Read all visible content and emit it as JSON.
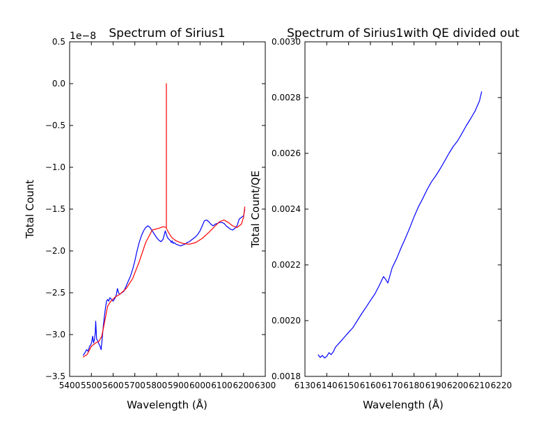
{
  "chart_data": [
    {
      "type": "line",
      "title": "Spectrum of Sirius1",
      "offset_label": "1e−8",
      "xlabel": "Wavelength ($\\AA$)",
      "ylabel": "Total Count",
      "xlim": [
        5400,
        6300
      ],
      "ylim": [
        -3.5,
        0.5
      ],
      "xticks": [
        5400,
        5500,
        5600,
        5700,
        5800,
        5900,
        6000,
        6100,
        6200,
        6300
      ],
      "yticks": [
        -3.5,
        -3.0,
        -2.5,
        -2.0,
        -1.5,
        -1.0,
        -0.5,
        0.0,
        0.5
      ],
      "ytick_labels": [
        "−3.5",
        "−3.0",
        "−2.5",
        "−2.0",
        "−1.5",
        "−1.0",
        "−0.5",
        "0.0",
        "0.5"
      ],
      "series": [
        {
          "color": "#0000ff",
          "x": [
            5462,
            5470,
            5478,
            5485,
            5492,
            5498,
            5502,
            5506,
            5510,
            5514,
            5518,
            5520,
            5524,
            5530,
            5536,
            5540,
            5545,
            5550,
            5555,
            5560,
            5565,
            5570,
            5575,
            5580,
            5585,
            5590,
            5595,
            5600,
            5605,
            5610,
            5615,
            5620,
            5625,
            5630,
            5640,
            5650,
            5660,
            5670,
            5680,
            5690,
            5700,
            5710,
            5720,
            5730,
            5740,
            5750,
            5760,
            5770,
            5780,
            5790,
            5800,
            5810,
            5820,
            5830,
            5840,
            5850,
            5860,
            5865,
            5868,
            5872,
            5876,
            5880,
            5890,
            5900,
            5910,
            5920,
            5930,
            5940,
            5950,
            5960,
            5970,
            5980,
            5990,
            6000,
            6010,
            6020,
            6030,
            6040,
            6050,
            6060,
            6070,
            6080,
            6090,
            6100,
            6110,
            6120,
            6130,
            6140,
            6150,
            6160,
            6170,
            6180,
            6190,
            6200,
            6206
          ],
          "y": [
            -3.25,
            -3.22,
            -3.18,
            -3.2,
            -3.14,
            -3.12,
            -3.08,
            -3.02,
            -3.1,
            -3.06,
            -2.98,
            -2.84,
            -3.05,
            -3.08,
            -3.12,
            -3.14,
            -3.18,
            -3.04,
            -2.9,
            -2.78,
            -2.68,
            -2.6,
            -2.58,
            -2.6,
            -2.56,
            -2.57,
            -2.59,
            -2.6,
            -2.58,
            -2.56,
            -2.52,
            -2.45,
            -2.5,
            -2.52,
            -2.5,
            -2.48,
            -2.42,
            -2.36,
            -2.3,
            -2.22,
            -2.12,
            -2.0,
            -1.9,
            -1.82,
            -1.76,
            -1.72,
            -1.7,
            -1.72,
            -1.76,
            -1.8,
            -1.84,
            -1.87,
            -1.89,
            -1.86,
            -1.76,
            -1.84,
            -1.87,
            -1.88,
            -1.9,
            -1.88,
            -1.91,
            -1.9,
            -1.92,
            -1.93,
            -1.94,
            -1.93,
            -1.92,
            -1.9,
            -1.89,
            -1.87,
            -1.85,
            -1.83,
            -1.8,
            -1.76,
            -1.7,
            -1.64,
            -1.63,
            -1.65,
            -1.68,
            -1.7,
            -1.68,
            -1.67,
            -1.66,
            -1.66,
            -1.67,
            -1.7,
            -1.72,
            -1.74,
            -1.75,
            -1.73,
            -1.7,
            -1.62,
            -1.6,
            -1.58,
            -1.5
          ]
        },
        {
          "color": "#ff0000",
          "x": [
            5462,
            5480,
            5500,
            5520,
            5535,
            5548,
            5560,
            5575,
            5590,
            5610,
            5630,
            5660,
            5690,
            5720,
            5750,
            5780,
            5810,
            5830,
            5845,
            5845,
            5845,
            5855,
            5870,
            5890,
            5920,
            5950,
            5980,
            6010,
            6040,
            6070,
            6090,
            6110,
            6130,
            6150,
            6170,
            6190,
            6200,
            6206
          ],
          "y": [
            -3.27,
            -3.24,
            -3.14,
            -3.1,
            -3.08,
            -3.02,
            -2.86,
            -2.66,
            -2.6,
            -2.55,
            -2.52,
            -2.45,
            -2.33,
            -2.13,
            -1.9,
            -1.75,
            -1.73,
            -1.71,
            -1.72,
            0.0,
            -1.73,
            -1.78,
            -1.84,
            -1.88,
            -1.91,
            -1.92,
            -1.9,
            -1.85,
            -1.78,
            -1.7,
            -1.65,
            -1.63,
            -1.66,
            -1.7,
            -1.72,
            -1.68,
            -1.6,
            -1.47
          ]
        }
      ]
    },
    {
      "type": "line",
      "title": "Spectrum of Sirius1with QE divided out",
      "xlabel": "Wavelength ($\\AA$)",
      "ylabel": "Total Count/QE",
      "xlim": [
        6130,
        6220
      ],
      "ylim": [
        0.0018,
        0.003
      ],
      "xticks": [
        6130,
        6140,
        6150,
        6160,
        6170,
        6180,
        6190,
        6200,
        6210,
        6220
      ],
      "yticks": [
        0.0018,
        0.002,
        0.0022,
        0.0024,
        0.0026,
        0.0028,
        0.003
      ],
      "ytick_labels": [
        "0.0018",
        "0.0020",
        "0.0022",
        "0.0024",
        "0.0026",
        "0.0028",
        "0.0030"
      ],
      "series": [
        {
          "color": "#0000ff",
          "x": [
            6136,
            6137,
            6138,
            6139,
            6140,
            6141,
            6142,
            6143,
            6144,
            6146,
            6148,
            6150,
            6152,
            6154,
            6156,
            6158,
            6160,
            6162,
            6164,
            6166,
            6167,
            6168,
            6170,
            6172,
            6174,
            6176,
            6178,
            6180,
            6182,
            6184,
            6186,
            6188,
            6190,
            6192,
            6194,
            6196,
            6198,
            6200,
            6202,
            6204,
            6206,
            6208,
            6210,
            6211
          ],
          "y": [
            0.001878,
            0.001868,
            0.001875,
            0.001866,
            0.001872,
            0.001885,
            0.001878,
            0.001888,
            0.001905,
            0.001922,
            0.00194,
            0.001958,
            0.001975,
            0.002,
            0.002025,
            0.002048,
            0.002072,
            0.002095,
            0.002125,
            0.002158,
            0.002148,
            0.002135,
            0.00219,
            0.002222,
            0.00226,
            0.002295,
            0.002332,
            0.002372,
            0.002408,
            0.002438,
            0.00247,
            0.002498,
            0.00252,
            0.002545,
            0.002572,
            0.0026,
            0.002625,
            0.002645,
            0.002672,
            0.0027,
            0.002725,
            0.002752,
            0.002788,
            0.002822
          ]
        }
      ]
    }
  ]
}
